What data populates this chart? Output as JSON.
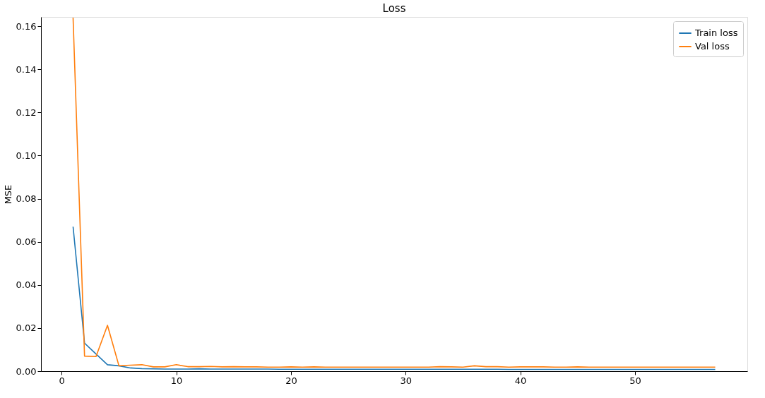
{
  "chart_data": {
    "type": "line",
    "title": "Loss",
    "ylabel": "MSE",
    "x": [
      1,
      2,
      3,
      4,
      5,
      6,
      7,
      8,
      9,
      10,
      11,
      12,
      13,
      14,
      15,
      16,
      17,
      18,
      19,
      20,
      21,
      22,
      23,
      24,
      25,
      26,
      27,
      28,
      29,
      30,
      31,
      32,
      33,
      34,
      35,
      36,
      37,
      38,
      39,
      40,
      41,
      42,
      43,
      44,
      45,
      46,
      47,
      48,
      49,
      50,
      51,
      52,
      53,
      54,
      55,
      56,
      57
    ],
    "series": [
      {
        "name": "Train loss",
        "color": "#1f77b4",
        "values": [
          0.067,
          0.013,
          0.008,
          0.003,
          0.0025,
          0.0015,
          0.0012,
          0.0011,
          0.001,
          0.001,
          0.001,
          0.0011,
          0.001,
          0.001,
          0.001,
          0.001,
          0.001,
          0.001,
          0.0009,
          0.0009,
          0.0009,
          0.0009,
          0.0009,
          0.0009,
          0.0009,
          0.0009,
          0.0009,
          0.0009,
          0.0009,
          0.0009,
          0.0009,
          0.0009,
          0.0009,
          0.0009,
          0.0009,
          0.0009,
          0.0009,
          0.0009,
          0.0008,
          0.0008,
          0.0008,
          0.0008,
          0.0008,
          0.0008,
          0.0008,
          0.0008,
          0.0008,
          0.0008,
          0.0008,
          0.0008,
          0.0008,
          0.0008,
          0.0008,
          0.0008,
          0.0008,
          0.0008,
          0.0008
        ]
      },
      {
        "name": "Val loss",
        "color": "#ff7f0e",
        "values": [
          0.164,
          0.007,
          0.0068,
          0.0213,
          0.0025,
          0.0028,
          0.003,
          0.002,
          0.002,
          0.003,
          0.0021,
          0.0021,
          0.0022,
          0.002,
          0.0021,
          0.002,
          0.002,
          0.0019,
          0.0019,
          0.002,
          0.0019,
          0.002,
          0.0019,
          0.0019,
          0.0019,
          0.0019,
          0.0019,
          0.0019,
          0.0019,
          0.0019,
          0.0019,
          0.0019,
          0.0021,
          0.002,
          0.0019,
          0.0025,
          0.0021,
          0.0021,
          0.0019,
          0.002,
          0.002,
          0.002,
          0.0019,
          0.0019,
          0.002,
          0.0019,
          0.0019,
          0.0019,
          0.0019,
          0.0019,
          0.0019,
          0.0019,
          0.0019,
          0.0019,
          0.0019,
          0.0019,
          0.0019
        ]
      }
    ],
    "xlim": [
      -1.8,
      59.8
    ],
    "ylim": [
      0,
      0.1643
    ],
    "xticks": [
      0,
      10,
      20,
      30,
      40,
      50
    ],
    "yticks": [
      {
        "value": 0,
        "label": "0.00"
      },
      {
        "value": 0.02,
        "label": "0.02"
      },
      {
        "value": 0.04,
        "label": "0.04"
      },
      {
        "value": 0.06,
        "label": "0.06"
      },
      {
        "value": 0.08,
        "label": "0.08"
      },
      {
        "value": 0.1,
        "label": "0.10"
      },
      {
        "value": 0.12,
        "label": "0.12"
      },
      {
        "value": 0.14,
        "label": "0.14"
      },
      {
        "value": 0.16,
        "label": "0.16"
      }
    ],
    "grid": false,
    "legend": "top right",
    "marker": "none",
    "line_style": "solid"
  }
}
